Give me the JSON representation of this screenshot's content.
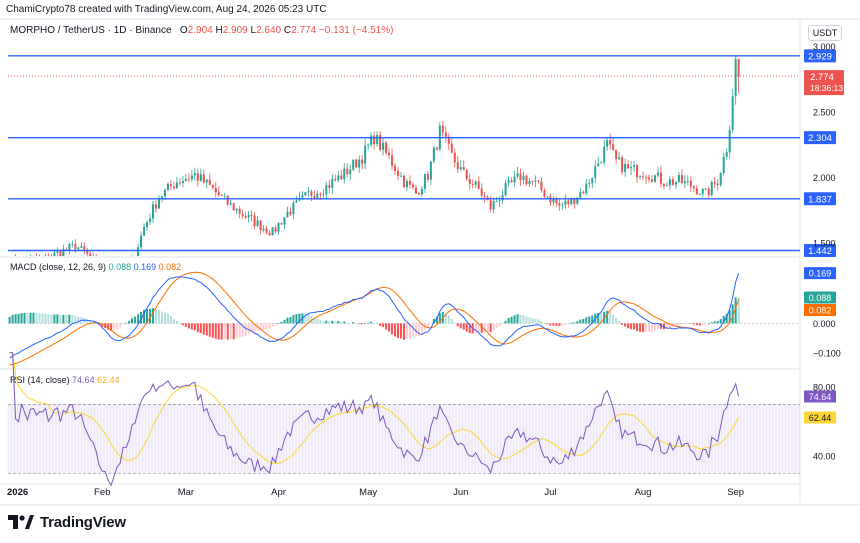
{
  "header": {
    "created_by": "ChamiCrypto78 created with TradingView.com, Aug 24, 2026 05:23 UTC"
  },
  "legend": {
    "symbol": "MORPHO / TetherUS · 1D · Binance",
    "open_label": "O",
    "open": "2.904",
    "high_label": "H",
    "high": "2.909",
    "low_label": "L",
    "low": "2.640",
    "close_label": "C",
    "close": "2.774",
    "change": "−0.131 (−4.51%)"
  },
  "currency_button": "USDT",
  "macd_legend": {
    "title": "MACD (close, 12, 26, 9)",
    "v1": "0.088",
    "v2": "0.169",
    "v3": "0.082"
  },
  "rsi_legend": {
    "title": "RSI (14, close)",
    "v1": "74.64",
    "v2": "62.44"
  },
  "brand": "TradingView",
  "colors": {
    "up": "#26a69a",
    "down": "#ef5350",
    "level": "#2962ff",
    "macd_line": "#2962ff",
    "signal_line": "#ff6d00",
    "rsi_line": "#7e57c2",
    "rsi_ma": "#fdd835"
  },
  "chart_data": [
    {
      "type": "candlestick",
      "title": "MORPHO / TetherUS · 1D · Binance",
      "ylim": [
        1.4,
        3.05
      ],
      "price_ticks": [
        "3.000",
        "2.500",
        "2.000",
        "1.500"
      ],
      "x_ticks": [
        "2026",
        "Feb",
        "Mar",
        "Apr",
        "May",
        "Jun",
        "Jul",
        "Aug",
        "Sep"
      ],
      "horizontal_levels": [
        {
          "label": "2.929",
          "value": 2.929
        },
        {
          "label": "2.304",
          "value": 2.304
        },
        {
          "label": "1.837",
          "value": 1.837
        },
        {
          "label": "1.442",
          "value": 1.442
        }
      ],
      "last_price": {
        "value": 2.774,
        "label": "2.774",
        "countdown": "18:36:13"
      },
      "path": [
        [
          0,
          1.35
        ],
        [
          12,
          1.38
        ],
        [
          22,
          1.48
        ],
        [
          27,
          1.39
        ],
        [
          34,
          1.15
        ],
        [
          40,
          1.28
        ],
        [
          45,
          1.62
        ],
        [
          50,
          1.85
        ],
        [
          56,
          1.97
        ],
        [
          62,
          2.02
        ],
        [
          67,
          1.93
        ],
        [
          72,
          1.82
        ],
        [
          78,
          1.72
        ],
        [
          84,
          1.63
        ],
        [
          88,
          1.58
        ],
        [
          93,
          1.73
        ],
        [
          100,
          1.87
        ],
        [
          106,
          1.93
        ],
        [
          112,
          2.03
        ],
        [
          118,
          2.16
        ],
        [
          122,
          2.31
        ],
        [
          127,
          2.15
        ],
        [
          132,
          1.97
        ],
        [
          136,
          1.88
        ],
        [
          140,
          2.02
        ],
        [
          144,
          2.35
        ],
        [
          148,
          2.16
        ],
        [
          152,
          2.02
        ],
        [
          157,
          1.91
        ],
        [
          161,
          1.77
        ],
        [
          166,
          1.91
        ],
        [
          171,
          2.01
        ],
        [
          176,
          1.95
        ],
        [
          180,
          1.86
        ],
        [
          184,
          1.78
        ],
        [
          188,
          1.82
        ],
        [
          193,
          1.93
        ],
        [
          196,
          2.07
        ],
        [
          200,
          2.25
        ],
        [
          203,
          2.12
        ],
        [
          207,
          2.06
        ],
        [
          213,
          2.04
        ],
        [
          219,
          1.97
        ],
        [
          224,
          1.97
        ],
        [
          228,
          1.94
        ],
        [
          233,
          1.87
        ],
        [
          237,
          1.98
        ],
        [
          240,
          2.23
        ],
        [
          242,
          2.6
        ],
        [
          243,
          2.92
        ],
        [
          244,
          2.774
        ]
      ]
    },
    {
      "type": "line",
      "title": "MACD (close, 12, 26, 9)",
      "ylim": [
        -0.15,
        0.22
      ],
      "y_ticks": [
        "0.000",
        "−0.100"
      ],
      "last_values": {
        "macd": "0.169",
        "signal": "0.082",
        "histogram": "0.088"
      }
    },
    {
      "type": "line",
      "title": "RSI (14, close)",
      "ylim": [
        25,
        90
      ],
      "y_ticks": [
        "80.00",
        "40.00"
      ],
      "bands": [
        30,
        70
      ],
      "last_values": {
        "rsi": "74.64",
        "ma": "62.44"
      }
    }
  ]
}
